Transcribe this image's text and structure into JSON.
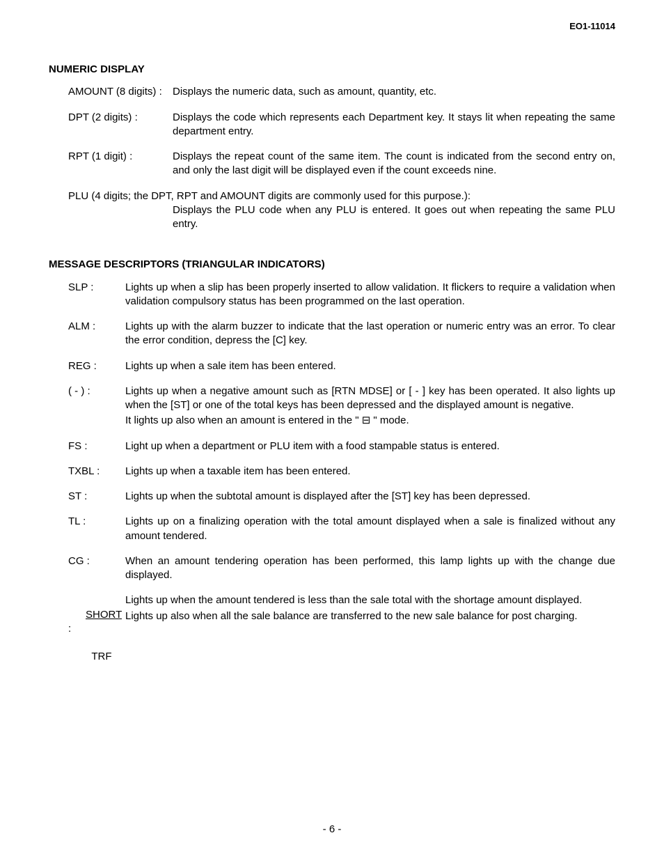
{
  "doc_id": "EO1-11014",
  "page_number": "- 6 -",
  "section1": {
    "title": "NUMERIC DISPLAY",
    "items": [
      {
        "label": "AMOUNT (8 digits) :",
        "desc": [
          "Displays the numeric data, such as amount, quantity, etc."
        ]
      },
      {
        "label": "DPT (2 digits) :",
        "desc": [
          "Displays the code which represents each Department key.   It stays lit when repeating the same department entry."
        ]
      },
      {
        "label": "RPT (1 digit) :",
        "desc": [
          "Displays the repeat count of the same item.    The count is indicated from the second entry on, and only the last digit will be displayed even if the count exceeds nine."
        ]
      }
    ],
    "plu": {
      "label": "PLU (4 digits; the DPT, RPT and AMOUNT digits are commonly used for this purpose.):",
      "desc": [
        "Displays the PLU code when any PLU is entered.    It goes out when repeating the same PLU entry."
      ]
    }
  },
  "section2": {
    "title": "MESSAGE DESCRIPTORS (TRIANGULAR INDICATORS)",
    "items": [
      {
        "label": "SLP :",
        "desc": [
          "Lights up when a slip has been properly inserted to allow validation.   It flickers to require a validation when validation compulsory status has been programmed on the last operation."
        ]
      },
      {
        "label": "ALM :",
        "desc": [
          "Lights up with the alarm buzzer to indicate that the last operation or numeric entry was an error.   To clear the error condition, depress the [C] key."
        ]
      },
      {
        "label": "REG :",
        "desc": [
          "Lights up when a sale item has been entered."
        ]
      },
      {
        "label": "( - ) :",
        "desc": [
          "Lights up when a negative amount such as [RTN MDSE] or [ - ] key has been operated.  It also lights up when the [ST] or one of the total keys has been depressed and the displayed amount is negative.",
          "It lights up also when an amount is entered in the \" ⊟ \" mode."
        ]
      },
      {
        "label": "FS :",
        "desc": [
          "Light up when a department or PLU item with a food stampable status is entered."
        ]
      },
      {
        "label": "TXBL :",
        "desc": [
          "Lights up when a taxable item has been entered."
        ]
      },
      {
        "label": "ST :",
        "desc": [
          "Lights up when the subtotal amount is displayed after the [ST] key has been depressed."
        ]
      },
      {
        "label": "TL :",
        "desc": [
          "Lights up on a finalizing operation with the total amount displayed when a sale is finalized without any amount tendered."
        ]
      },
      {
        "label": "CG :",
        "desc": [
          "When an amount tendering operation has been performed, this lamp lights up with the change due displayed."
        ]
      },
      {
        "label_special": {
          "line1": "SHORT",
          "line2": "TRF",
          "suffix": " :"
        },
        "desc": [
          "Lights up when the amount tendered is less than the sale total with the shortage amount displayed.",
          "Lights up also when all the sale balance are transferred to the new sale balance for post charging."
        ]
      }
    ]
  }
}
